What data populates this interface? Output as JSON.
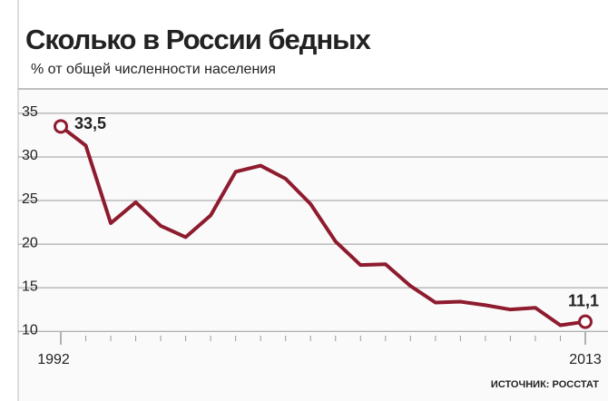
{
  "chart_data": {
    "type": "line",
    "title": "Сколько в России бедных",
    "subtitle": "% от общей численности населения",
    "source": "ИСТОЧНИК: РОССТАТ",
    "x": [
      1992,
      1993,
      1994,
      1995,
      1996,
      1997,
      1998,
      1999,
      2000,
      2001,
      2002,
      2003,
      2004,
      2005,
      2006,
      2007,
      2008,
      2009,
      2010,
      2011,
      2012,
      2013
    ],
    "values": [
      33.5,
      31.3,
      22.4,
      24.8,
      22.1,
      20.8,
      23.3,
      28.3,
      29.0,
      27.5,
      24.6,
      20.3,
      17.6,
      17.7,
      15.2,
      13.3,
      13.4,
      13.0,
      12.5,
      12.7,
      10.7,
      11.1
    ],
    "value_labels": [
      "33,5",
      null,
      null,
      null,
      null,
      null,
      null,
      null,
      null,
      null,
      null,
      null,
      null,
      null,
      null,
      null,
      null,
      null,
      null,
      null,
      null,
      "11,1"
    ],
    "color": "#8e1b2e",
    "xlim": [
      1992,
      2013
    ],
    "xticks": [
      1992,
      2013
    ],
    "ylim": [
      6.9,
      37.8
    ],
    "yticks": [
      10,
      15,
      20,
      25,
      30,
      35
    ],
    "grid": true
  }
}
